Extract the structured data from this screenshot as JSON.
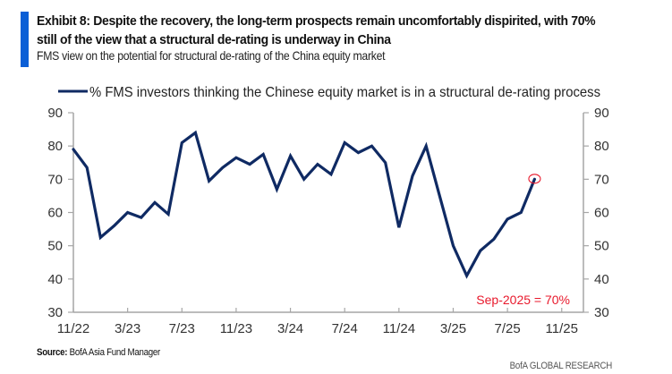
{
  "header": {
    "title_line1": "Exhibit 8: Despite the recovery, the long-term prospects remain uncomfortably dispirited, with 70%",
    "title_line2": "still of the view that a structural de-rating is underway in China",
    "subtitle": "FMS view on the potential for structural de-rating of the China equity market",
    "accent_color": "#0b5fd6"
  },
  "footer": {
    "source_label": "Source:",
    "source_text": "BofA Asia Fund Manager",
    "brand": "BofA GLOBAL RESEARCH"
  },
  "chart_data": {
    "type": "line",
    "title": "FMS view on the potential for structural de-rating of the China equity market",
    "xlabel": "",
    "ylabel": "",
    "ylim": [
      30,
      90
    ],
    "y_ticks": [
      30,
      40,
      50,
      60,
      70,
      80,
      90
    ],
    "y_tick_labels": [
      "30",
      "40",
      "50",
      "60",
      "70",
      "80",
      "90"
    ],
    "y_axis_right": true,
    "x_tick_labels": [
      "11/22",
      "3/23",
      "7/23",
      "11/23",
      "3/24",
      "7/24",
      "11/24",
      "3/25",
      "7/25",
      "11/25"
    ],
    "x_tick_month_index": [
      0,
      4,
      8,
      12,
      16,
      20,
      24,
      28,
      32,
      36
    ],
    "x_range_months": [
      0,
      37.5
    ],
    "grid": false,
    "legend_position": "top",
    "series": [
      {
        "name": "% FMS investors thinking the Chinese equity market is in a structural de-rating process",
        "color": "#0f2a63",
        "x": [
          "11/22",
          "12/22",
          "1/23",
          "2/23",
          "3/23",
          "4/23",
          "5/23",
          "6/23",
          "7/23",
          "8/23",
          "9/23",
          "10/23",
          "11/23",
          "12/23",
          "1/24",
          "2/24",
          "3/24",
          "4/24",
          "5/24",
          "6/24",
          "7/24",
          "8/24",
          "9/24",
          "10/24",
          "11/24",
          "12/24",
          "1/25",
          "2/25",
          "3/25",
          "4/25",
          "5/25",
          "6/25",
          "7/25",
          "8/25",
          "9/25"
        ],
        "values": [
          79,
          73.5,
          52.5,
          56,
          60,
          58.5,
          63,
          59.5,
          81,
          84,
          69.5,
          73.5,
          76.5,
          74.5,
          77.5,
          67,
          77,
          70,
          74.5,
          71.5,
          81,
          78,
          80,
          75,
          55.5,
          71,
          80,
          65,
          50,
          41,
          48.5,
          52,
          58,
          60,
          70
        ]
      }
    ],
    "annotations": [
      {
        "text": "Sep-2025 = 70%",
        "x": "9/25",
        "value": 70,
        "color": "#e8192c",
        "highlight_circle": true
      }
    ]
  }
}
